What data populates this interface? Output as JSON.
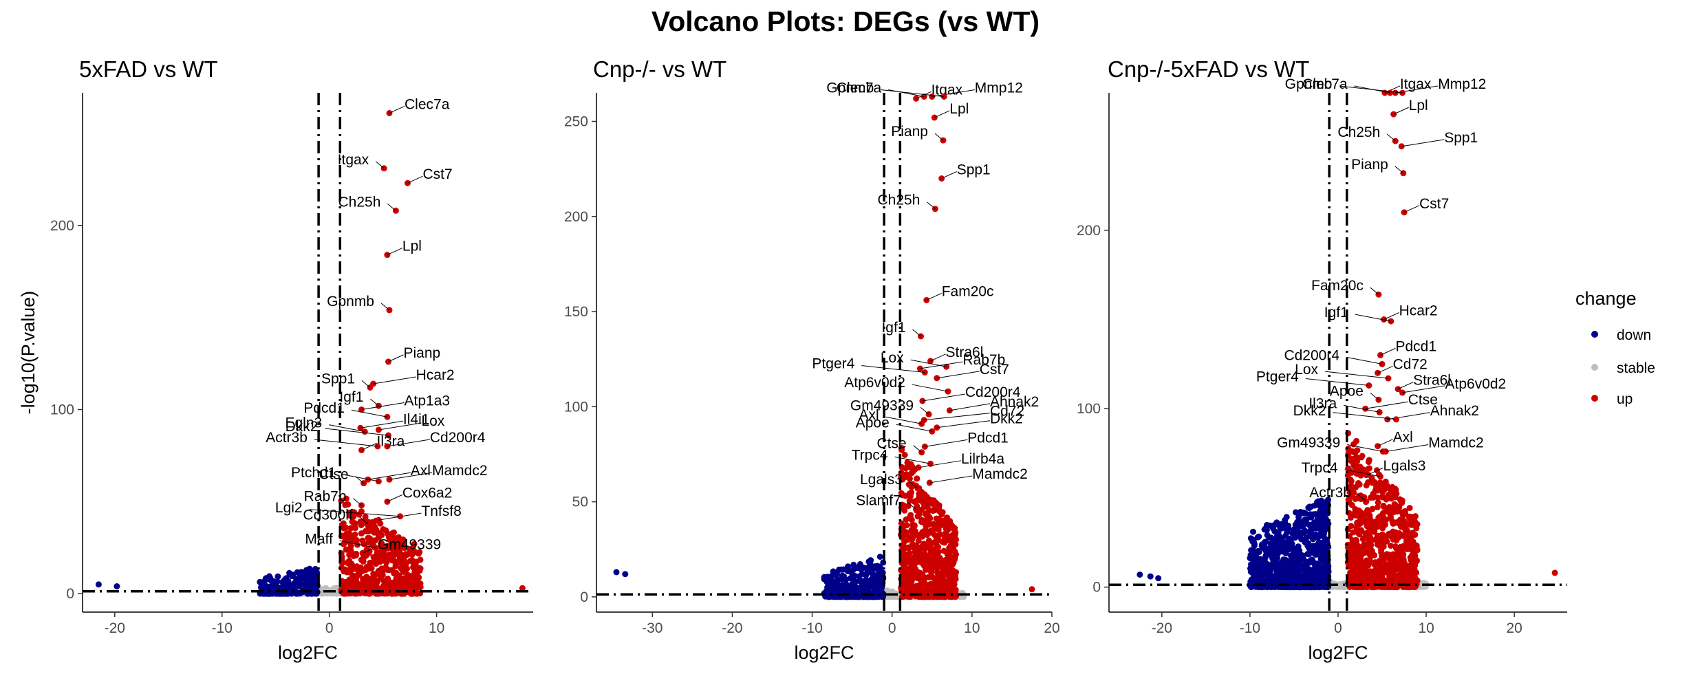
{
  "title": "Volcano Plots: DEGs (vs WT)",
  "legend": {
    "title": "change",
    "placement": "right",
    "entries": [
      {
        "label": "down",
        "color": "#00008B"
      },
      {
        "label": "stable",
        "color": "#BEBEBE"
      },
      {
        "label": "up",
        "color": "#CD0000"
      }
    ]
  },
  "chart_data": [
    {
      "type": "scatter",
      "title": "5xFAD vs WT",
      "xlabel": "log2FC",
      "ylabel": "-log10(P.value)",
      "xlim": [
        -23,
        19
      ],
      "ylim": [
        -10,
        272
      ],
      "xticks": [
        -20,
        -10,
        0,
        10
      ],
      "yticks": [
        0,
        100,
        200
      ],
      "vlines": [
        -1,
        1
      ],
      "hline": 1.3,
      "grid": false,
      "points": [
        {
          "x": -21.5,
          "y": 5,
          "change": "down"
        },
        {
          "x": -19.8,
          "y": 4,
          "change": "down"
        },
        {
          "x": 18,
          "y": 3,
          "change": "up"
        }
      ],
      "labels": [
        {
          "gene": "Clec7a",
          "x": 5.6,
          "y": 261
        },
        {
          "gene": "Itgax",
          "x": 5.1,
          "y": 231
        },
        {
          "gene": "Cst7",
          "x": 7.3,
          "y": 223
        },
        {
          "gene": "Ch25h",
          "x": 6.2,
          "y": 208
        },
        {
          "gene": "Lpl",
          "x": 5.4,
          "y": 184
        },
        {
          "gene": "Gpnmb",
          "x": 5.6,
          "y": 154
        },
        {
          "gene": "Pianp",
          "x": 5.5,
          "y": 126
        },
        {
          "gene": "Spp1",
          "x": 3.8,
          "y": 112
        },
        {
          "gene": "Hcar2",
          "x": 4.1,
          "y": 114
        },
        {
          "gene": "Igf1",
          "x": 4.6,
          "y": 102
        },
        {
          "gene": "Atp1a3",
          "x": 3.0,
          "y": 100
        },
        {
          "gene": "Pdcd1",
          "x": 5.4,
          "y": 96
        },
        {
          "gene": "Il4i1",
          "x": 2.9,
          "y": 90
        },
        {
          "gene": "Egln3",
          "x": 3.3,
          "y": 88
        },
        {
          "gene": "Lox",
          "x": 4.6,
          "y": 89
        },
        {
          "gene": "Dkk2",
          "x": 5.5,
          "y": 86
        },
        {
          "gene": "Il3ra",
          "x": 3.0,
          "y": 78
        },
        {
          "gene": "Actr3b",
          "x": 4.5,
          "y": 80
        },
        {
          "gene": "Cd200r4",
          "x": 5.4,
          "y": 80
        },
        {
          "gene": "Ctse",
          "x": 3.2,
          "y": 60
        },
        {
          "gene": "Axl",
          "x": 3.6,
          "y": 62
        },
        {
          "gene": "Ptchd1",
          "x": 4.6,
          "y": 61
        },
        {
          "gene": "Mamdc2",
          "x": 5.6,
          "y": 62
        },
        {
          "gene": "Rab7b",
          "x": 3.0,
          "y": 48
        },
        {
          "gene": "Cox6a2",
          "x": 5.4,
          "y": 50
        },
        {
          "gene": "Cd300lf",
          "x": 3.6,
          "y": 38
        },
        {
          "gene": "Tnfsf8",
          "x": 4.6,
          "y": 40
        },
        {
          "gene": "Lgi2",
          "x": 6.6,
          "y": 42
        },
        {
          "gene": "Gm49339",
          "x": 3.1,
          "y": 22
        },
        {
          "gene": "Maff",
          "x": 4.3,
          "y": 25
        }
      ]
    },
    {
      "type": "scatter",
      "title": "Cnp-/- vs WT",
      "xlabel": "log2FC",
      "ylabel": "",
      "xlim": [
        -37,
        20
      ],
      "ylim": [
        -8,
        265
      ],
      "xticks": [
        -30,
        -20,
        -10,
        0,
        10,
        20
      ],
      "yticks": [
        0,
        50,
        100,
        150,
        200,
        250
      ],
      "vlines": [
        -1,
        1
      ],
      "hline": 1.3,
      "grid": false,
      "points": [
        {
          "x": -34.5,
          "y": 13,
          "change": "down"
        },
        {
          "x": -33.4,
          "y": 12,
          "change": "down"
        },
        {
          "x": 17.5,
          "y": 4,
          "change": "up"
        }
      ],
      "labels": [
        {
          "gene": "Itgax",
          "x": 3.0,
          "y": 262
        },
        {
          "gene": "Clec7a",
          "x": 4.0,
          "y": 263
        },
        {
          "gene": "Mmp12",
          "x": 5.0,
          "y": 263
        },
        {
          "gene": "Gpnmb",
          "x": 6.5,
          "y": 263
        },
        {
          "gene": "Lpl",
          "x": 5.3,
          "y": 252
        },
        {
          "gene": "Pianp",
          "x": 6.4,
          "y": 240
        },
        {
          "gene": "Spp1",
          "x": 6.2,
          "y": 220
        },
        {
          "gene": "Ch25h",
          "x": 5.4,
          "y": 204
        },
        {
          "gene": "Fam20c",
          "x": 4.3,
          "y": 156
        },
        {
          "gene": "Igf1",
          "x": 3.6,
          "y": 137
        },
        {
          "gene": "Stra6l",
          "x": 4.8,
          "y": 124
        },
        {
          "gene": "Lox",
          "x": 6.8,
          "y": 121
        },
        {
          "gene": "Rab7b",
          "x": 3.5,
          "y": 120
        },
        {
          "gene": "Ptger4",
          "x": 4.1,
          "y": 118
        },
        {
          "gene": "Cst7",
          "x": 5.6,
          "y": 115
        },
        {
          "gene": "Atp6v0d2",
          "x": 7.0,
          "y": 108
        },
        {
          "gene": "Cd200r4",
          "x": 3.8,
          "y": 103
        },
        {
          "gene": "Gm49339",
          "x": 4.6,
          "y": 96
        },
        {
          "gene": "Ahnak2",
          "x": 7.2,
          "y": 98
        },
        {
          "gene": "Axl",
          "x": 3.7,
          "y": 91
        },
        {
          "gene": "Cd72",
          "x": 4.0,
          "y": 93
        },
        {
          "gene": "Apoe",
          "x": 5.0,
          "y": 87
        },
        {
          "gene": "Dkk2",
          "x": 5.6,
          "y": 89
        },
        {
          "gene": "Ctse",
          "x": 3.7,
          "y": 76
        },
        {
          "gene": "Pdcd1",
          "x": 4.1,
          "y": 79
        },
        {
          "gene": "Trpc4",
          "x": 4.8,
          "y": 70
        },
        {
          "gene": "Lilrb4a",
          "x": 3.3,
          "y": 68
        },
        {
          "gene": "Lgals3",
          "x": 3.2,
          "y": 57
        },
        {
          "gene": "Mamdc2",
          "x": 4.7,
          "y": 60
        },
        {
          "gene": "Slamf7",
          "x": 3.0,
          "y": 46
        }
      ]
    },
    {
      "type": "scatter",
      "title": "Cnp-/-5xFAD vs WT",
      "xlabel": "log2FC",
      "ylabel": "",
      "xlim": [
        -26,
        26
      ],
      "ylim": [
        -14,
        277
      ],
      "xticks": [
        -20,
        -10,
        0,
        10,
        20
      ],
      "yticks": [
        0,
        100,
        200
      ],
      "vlines": [
        -1,
        1
      ],
      "hline": 1.3,
      "grid": false,
      "points": [
        {
          "x": -22.5,
          "y": 7,
          "change": "down"
        },
        {
          "x": -21.3,
          "y": 6,
          "change": "down"
        },
        {
          "x": -20.4,
          "y": 5,
          "change": "down"
        },
        {
          "x": 24.6,
          "y": 8,
          "change": "up"
        }
      ],
      "labels": [
        {
          "gene": "Itgax",
          "x": 5.3,
          "y": 277
        },
        {
          "gene": "Clec7a",
          "x": 5.9,
          "y": 277
        },
        {
          "gene": "Mmp12",
          "x": 6.5,
          "y": 277
        },
        {
          "gene": "Gpnmb",
          "x": 7.3,
          "y": 277
        },
        {
          "gene": "Lpl",
          "x": 6.3,
          "y": 265
        },
        {
          "gene": "Ch25h",
          "x": 6.5,
          "y": 250
        },
        {
          "gene": "Spp1",
          "x": 7.2,
          "y": 247
        },
        {
          "gene": "Pianp",
          "x": 7.4,
          "y": 232
        },
        {
          "gene": "Cst7",
          "x": 7.5,
          "y": 210
        },
        {
          "gene": "Fam20c",
          "x": 4.6,
          "y": 164
        },
        {
          "gene": "Hcar2",
          "x": 5.2,
          "y": 150
        },
        {
          "gene": "Igf1",
          "x": 6.0,
          "y": 149
        },
        {
          "gene": "Pdcd1",
          "x": 4.8,
          "y": 130
        },
        {
          "gene": "Cd200r4",
          "x": 5.0,
          "y": 125
        },
        {
          "gene": "Cd72",
          "x": 4.5,
          "y": 120
        },
        {
          "gene": "Lox",
          "x": 5.7,
          "y": 117
        },
        {
          "gene": "Stra6l",
          "x": 6.8,
          "y": 111
        },
        {
          "gene": "Ptger4",
          "x": 3.5,
          "y": 113
        },
        {
          "gene": "Atp6v0d2",
          "x": 7.3,
          "y": 109
        },
        {
          "gene": "Apoe",
          "x": 4.6,
          "y": 105
        },
        {
          "gene": "Ctse",
          "x": 3.1,
          "y": 100
        },
        {
          "gene": "Il3ra",
          "x": 4.7,
          "y": 98
        },
        {
          "gene": "Ahnak2",
          "x": 5.6,
          "y": 94
        },
        {
          "gene": "Dkk2",
          "x": 6.6,
          "y": 94
        },
        {
          "gene": "Axl",
          "x": 4.5,
          "y": 79
        },
        {
          "gene": "Gm49339",
          "x": 5.1,
          "y": 76
        },
        {
          "gene": "Lgals3",
          "x": 3.4,
          "y": 63
        },
        {
          "gene": "Trpc4",
          "x": 4.8,
          "y": 62
        },
        {
          "gene": "Mamdc2",
          "x": 5.4,
          "y": 76
        },
        {
          "gene": "Actr3b",
          "x": 3.2,
          "y": 48
        }
      ]
    }
  ]
}
